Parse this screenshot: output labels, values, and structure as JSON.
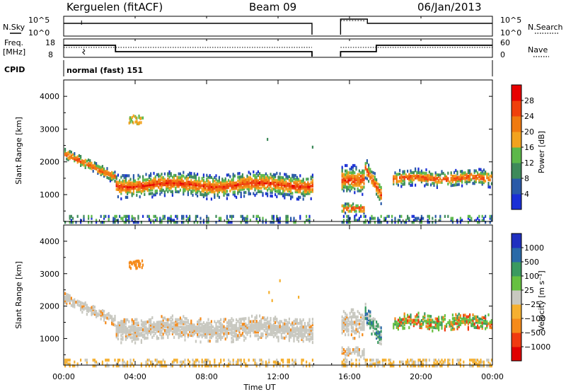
{
  "header": {
    "station": "Kerguelen (fitACF)",
    "beam": "Beam 09",
    "date": "06/Jan/2013"
  },
  "status_panels": {
    "nsky_label": "N.Sky",
    "nsearch_label": "N.Search",
    "noise_ticks": [
      "10^5",
      "10^0"
    ],
    "freq_label_line1": "Freq.",
    "freq_label_line2": "[MHz]",
    "freq_ticks": [
      "18",
      "8"
    ],
    "nave_label": "Nave",
    "nave_ticks": [
      "60",
      "0"
    ],
    "cpid_label": "CPID",
    "cpid_value": "normal (fast) 151"
  },
  "colors": {
    "power_scale": [
      "#1a2fd6",
      "#2a5aa8",
      "#3e8a5a",
      "#5cb84a",
      "#f2a21e",
      "#f07a10",
      "#f0400c",
      "#e80000"
    ],
    "velocity_scale": [
      "#e00000",
      "#f03a10",
      "#f58a1a",
      "#f5b030",
      "#c8c8c0",
      "#66c040",
      "#3a9a60",
      "#2a6aa8",
      "#2030c0"
    ],
    "noise_line": "#000000"
  },
  "chart_data": [
    {
      "type": "heatmap",
      "name": "power-panel",
      "ylabel": "Slant Range [km]",
      "xlim": [
        "00:00",
        "24:00"
      ],
      "ylim": [
        180,
        4500
      ],
      "y_ticks": [
        "4000",
        "3000",
        "2000",
        "1000"
      ],
      "y_tick_values": [
        4000,
        3000,
        2000,
        1000
      ],
      "colorbar_label": "Power [dB]",
      "colorbar_ticks": [
        "28",
        "24",
        "20",
        "16",
        "12",
        "8",
        "4"
      ],
      "colorbar_range": [
        0,
        32
      ]
    },
    {
      "type": "heatmap",
      "name": "velocity-panel",
      "ylabel": "Slant Range [km]",
      "xlim": [
        "00:00",
        "24:00"
      ],
      "ylim": [
        180,
        4500
      ],
      "y_ticks": [
        "4000",
        "3000",
        "2000",
        "1000"
      ],
      "y_tick_values": [
        4000,
        3000,
        2000,
        1000
      ],
      "colorbar_label": "Velocity [m s⁻¹]",
      "colorbar_ticks": [
        "1000",
        "500",
        "100",
        "25",
        "−25",
        "−100",
        "−500",
        "−1000"
      ]
    }
  ],
  "x_axis": {
    "label": "Time UT",
    "ticks": [
      "00:00",
      "04:00",
      "08:00",
      "12:00",
      "16:00",
      "20:00",
      "00:00"
    ]
  }
}
